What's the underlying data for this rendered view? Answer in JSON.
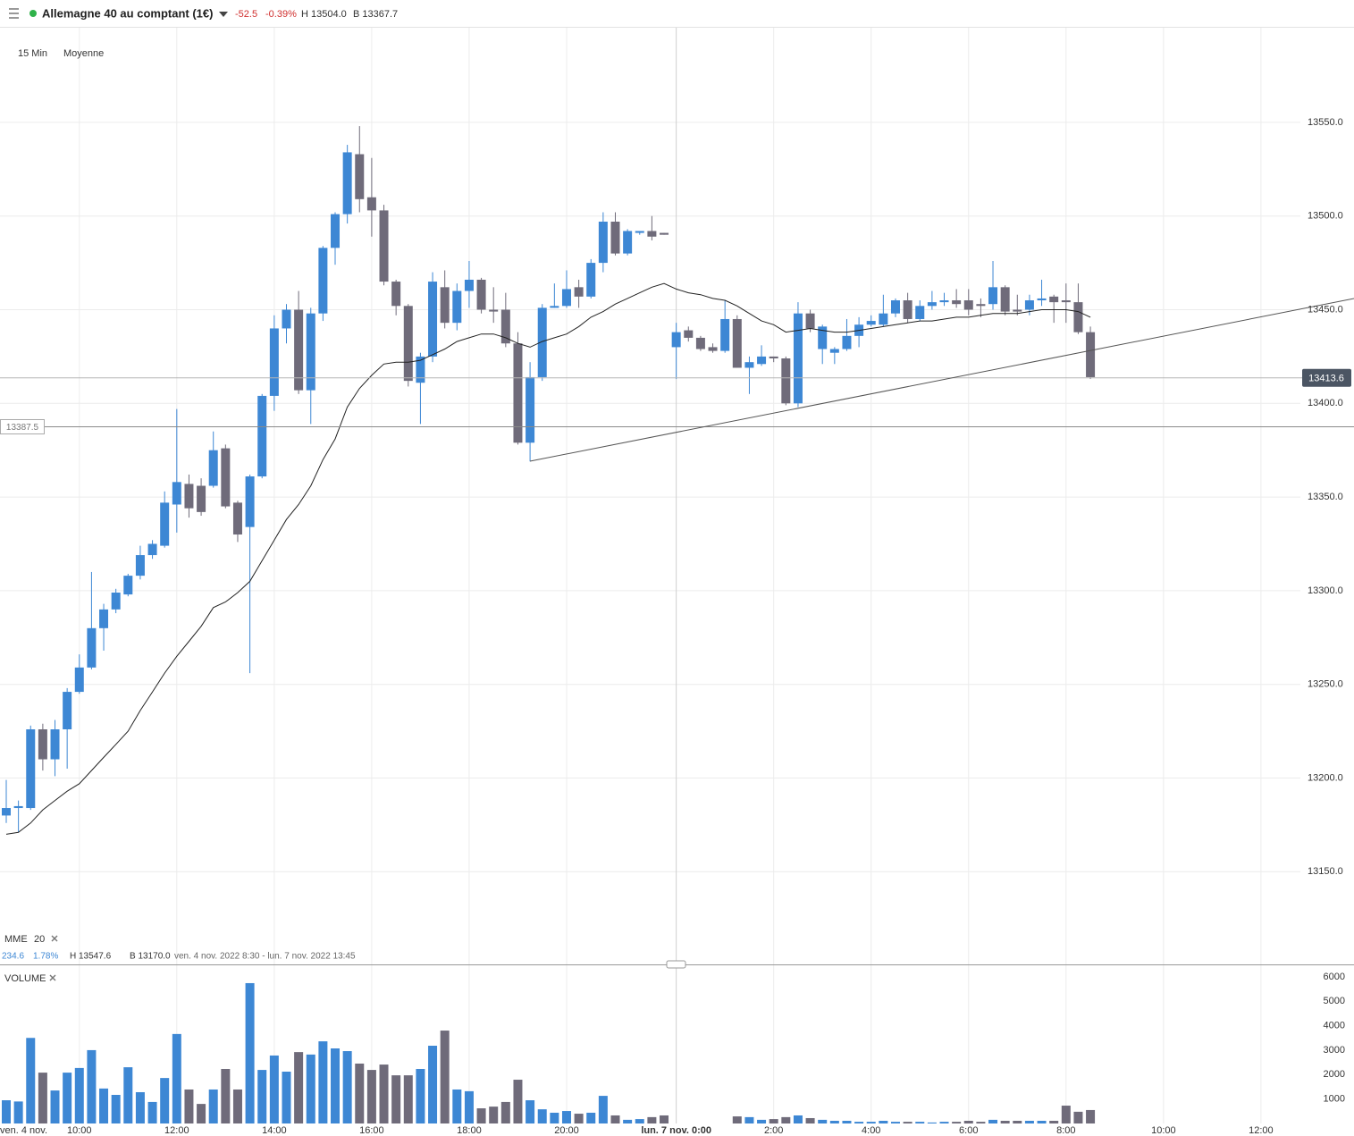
{
  "chart_data": {
    "type": "candlestick",
    "title": "Allemagne 40 au comptant (1€)",
    "change": "-52.5",
    "change_pct": "-0.39%",
    "high_label": "H 13504.0",
    "low_label": "B 13367.7",
    "interval": "15 Min",
    "chart_style": "Moyenne",
    "indicator_name": "MME",
    "indicator_period": 20,
    "info": {
      "change": "234.6",
      "change_pct": "1.78%",
      "high": "H 13547.6",
      "low": "B 13170.0",
      "range": "ven. 4 nov. 2022 8:30 - lun. 7 nov. 2022 13:45"
    },
    "up_color": "#3d87d4",
    "down_color": "#6f6b7a",
    "ema_color": "#222222",
    "categories": [
      "ven. 4 nov.",
      null,
      null,
      null,
      null,
      null,
      "10:00",
      null,
      null,
      null,
      null,
      null,
      null,
      null,
      "12:00",
      null,
      null,
      null,
      null,
      null,
      null,
      null,
      "14:00",
      null,
      null,
      null,
      null,
      null,
      null,
      null,
      "16:00",
      null,
      null,
      null,
      null,
      null,
      null,
      null,
      "18:00",
      null,
      null,
      null,
      null,
      null,
      null,
      null,
      "20:00",
      null,
      null,
      null,
      null,
      null,
      null,
      null,
      null,
      "lun. 7 nov. 0:00",
      null,
      null,
      null,
      null,
      null,
      null,
      null,
      "2:00",
      null,
      null,
      null,
      null,
      null,
      null,
      null,
      "4:00",
      null,
      null,
      null,
      null,
      null,
      null,
      null,
      "6:00",
      null,
      null,
      null,
      null,
      null,
      null,
      null,
      "8:00",
      null,
      null,
      null,
      null,
      null,
      null,
      null,
      "10:00",
      null,
      null,
      null,
      null,
      null,
      null,
      null,
      "12:00"
    ],
    "open": [
      13180,
      13184,
      13184,
      13226,
      13210,
      13226,
      13246,
      13259,
      13280,
      13290,
      13298,
      13308,
      13319,
      13324,
      13346,
      13357,
      13356,
      13356,
      13376,
      13347,
      13334,
      13361,
      13404,
      13440,
      13450,
      13407,
      13448,
      13483,
      13501,
      13533,
      13510,
      13503,
      13465,
      13452,
      13411,
      13425,
      13462,
      13443,
      13460,
      13466,
      13450,
      13450,
      13432,
      13379,
      13414,
      13451,
      13452,
      13462,
      13457,
      13475,
      13497,
      13480,
      13491,
      13492,
      13491,
      13430,
      13439,
      13435,
      13430,
      13428,
      13445,
      13419,
      13421,
      13425,
      13424,
      13400,
      13448,
      13429,
      13427,
      13429,
      13436,
      13442,
      13442,
      13448,
      13455,
      13445,
      13452,
      13454,
      13455,
      13455,
      13453,
      13453,
      13462,
      13450,
      13450,
      13455,
      13457,
      13455,
      13454,
      13438,
      null,
      null,
      null,
      null,
      null,
      null,
      null,
      null,
      null,
      null,
      null,
      null,
      null,
      null
    ],
    "high": [
      13199,
      13188,
      13228,
      13229,
      13231,
      13248,
      13266,
      13310,
      13293,
      13301,
      13309,
      13324,
      13327,
      13353,
      13397,
      13362,
      13360,
      13385,
      13378,
      13348,
      13362,
      13405,
      13447,
      13453,
      13460,
      13451,
      13484,
      13502,
      13538,
      13548,
      13531,
      13506,
      13466,
      13453,
      13427,
      13470,
      13471,
      13464,
      13476,
      13467,
      13462,
      13459,
      13438,
      13422,
      13453,
      13464,
      13471,
      13466,
      13477,
      13502,
      13502,
      13493,
      13492,
      13500,
      13491,
      13443,
      13441,
      13436,
      13432,
      13455,
      13447,
      13425,
      13431,
      13425,
      13425,
      13454,
      13450,
      13442,
      13430,
      13445,
      13446,
      13447,
      13458,
      13456,
      13459,
      13455,
      13460,
      13459,
      13461,
      13461,
      13456,
      13476,
      13463,
      13458,
      13458,
      13466,
      13458,
      13464,
      13464,
      13441,
      null,
      null,
      null,
      null,
      null,
      null,
      null,
      null,
      null,
      null,
      null,
      null,
      null,
      null
    ],
    "low": [
      13176,
      13171,
      13183,
      13204,
      13201,
      13205,
      13245,
      13258,
      13268,
      13288,
      13297,
      13306,
      13317,
      13323,
      13331,
      13339,
      13340,
      13355,
      13344,
      13326,
      13256,
      13360,
      13396,
      13432,
      13405,
      13389,
      13444,
      13474,
      13496,
      13502,
      13489,
      13463,
      13447,
      13409,
      13389,
      13422,
      13440,
      13439,
      13451,
      13448,
      13443,
      13430,
      13378,
      13369,
      13412,
      13451,
      13451,
      13451,
      13456,
      13470,
      13479,
      13479,
      13490,
      13487,
      13490,
      13413,
      13433,
      13428,
      13427,
      13427,
      13419,
      13405,
      13420,
      13422,
      13399,
      13398,
      13438,
      13421,
      13421,
      13428,
      13430,
      13441,
      13441,
      13446,
      13443,
      13444,
      13450,
      13452,
      13451,
      13447,
      13446,
      13450,
      13447,
      13447,
      13447,
      13452,
      13443,
      13443,
      13437,
      13413,
      null,
      null,
      null,
      null,
      null,
      null,
      null,
      null,
      null,
      null,
      null,
      null,
      null,
      null
    ],
    "close": [
      13184,
      13185,
      13226,
      13210,
      13226,
      13246,
      13259,
      13280,
      13290,
      13299,
      13308,
      13319,
      13325,
      13347,
      13358,
      13344,
      13342,
      13375,
      13345,
      13330,
      13361,
      13404,
      13440,
      13450,
      13407,
      13448,
      13483,
      13501,
      13534,
      13509,
      13503,
      13465,
      13452,
      13412,
      13425,
      13465,
      13443,
      13460,
      13466,
      13450,
      13449,
      13432,
      13379,
      13414,
      13451,
      13452,
      13461,
      13457,
      13475,
      13497,
      13480,
      13492,
      13492,
      13489,
      13490,
      13438,
      13435,
      13429,
      13428,
      13445,
      13419,
      13422,
      13425,
      13424,
      13400,
      13448,
      13440,
      13441,
      13429,
      13436,
      13442,
      13444,
      13448,
      13455,
      13445,
      13452,
      13454,
      13455,
      13453,
      13450,
      13452,
      13462,
      13449,
      13449,
      13455,
      13456,
      13454,
      13454,
      13438,
      13414,
      null,
      null,
      null,
      null,
      null,
      null,
      null,
      null,
      null,
      null,
      null,
      null,
      null,
      null
    ],
    "ema": [
      13170,
      13171,
      13176,
      13183,
      13188,
      13193,
      13197,
      13204,
      13211,
      13218,
      13225,
      13236,
      13246,
      13256,
      13265,
      13273,
      13281,
      13291,
      13294,
      13299,
      13305,
      13316,
      13327,
      13338,
      13346,
      13356,
      13370,
      13381,
      13398,
      13408,
      13415,
      13421,
      13422,
      13422,
      13423,
      13426,
      13429,
      13433,
      13435,
      13437,
      13437,
      13435,
      13432,
      13430,
      13433,
      13435,
      13437,
      13441,
      13446,
      13449,
      13453,
      13456,
      13459,
      13462,
      13464,
      13461,
      13459,
      13458,
      13456,
      13455,
      13452,
      13448,
      13444,
      13442,
      13438,
      13439,
      13440,
      13439,
      13438,
      13438,
      13439,
      13440,
      13441,
      13442,
      13443,
      13444,
      13444,
      13445,
      13446,
      13446,
      13447,
      13448,
      13448,
      13448,
      13449,
      13450,
      13450,
      13450,
      13449,
      13446,
      null,
      null,
      null,
      null,
      null,
      null,
      null,
      null,
      null,
      null,
      null,
      null,
      null,
      null
    ],
    "ylim": [
      13101,
      13601
    ],
    "yticks": [
      {
        "value": 13150,
        "label": "13150.0"
      },
      {
        "value": 13200,
        "label": "13200.0"
      },
      {
        "value": 13250,
        "label": "13250.0"
      },
      {
        "value": 13300,
        "label": "13300.0"
      },
      {
        "value": 13350,
        "label": "13350.0"
      },
      {
        "value": 13400,
        "label": "13400.0"
      },
      {
        "value": 13450,
        "label": "13450.0"
      },
      {
        "value": 13500,
        "label": "13500.0"
      },
      {
        "value": 13550,
        "label": "13550.0"
      }
    ],
    "reference_line": 13387.5,
    "last_price": 13413.6,
    "grid": true,
    "volume": {
      "name": "VOLUME",
      "values": [
        950,
        900,
        3500,
        2080,
        1350,
        2080,
        2270,
        3000,
        1430,
        1170,
        2300,
        1280,
        880,
        1860,
        3660,
        1390,
        800,
        1390,
        2230,
        1390,
        5740,
        2190,
        2780,
        2120,
        2920,
        2820,
        3360,
        3070,
        2960,
        2450,
        2190,
        2410,
        1970,
        1970,
        2230,
        3180,
        3800,
        1390,
        1320,
        620,
        690,
        880,
        1790,
        950,
        580,
        440,
        510,
        400,
        440,
        1130,
        330,
        150,
        180,
        260,
        330,
        null,
        null,
        null,
        null,
        null,
        290,
        260,
        150,
        180,
        260,
        330,
        220,
        150,
        110,
        110,
        70,
        70,
        110,
        70,
        70,
        70,
        40,
        70,
        70,
        110,
        70,
        150,
        110,
        110,
        110,
        110,
        110,
        730,
        480,
        550,
        null,
        null,
        null,
        null,
        null,
        null,
        null,
        null,
        null,
        null,
        null,
        null,
        null,
        null
      ],
      "ylim": [
        0,
        6470
      ],
      "yticks": [
        1000,
        2000,
        3000,
        4000,
        5000,
        6000
      ]
    }
  }
}
